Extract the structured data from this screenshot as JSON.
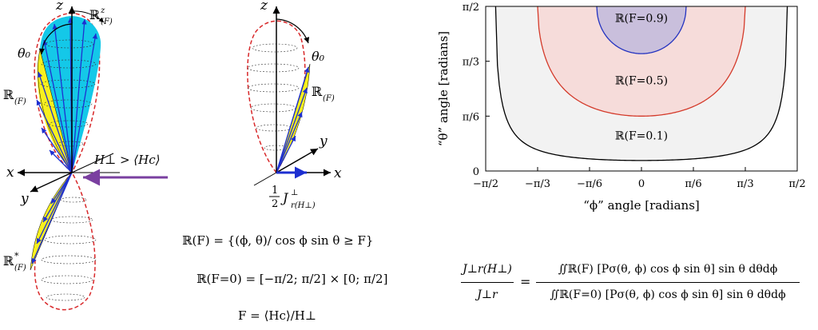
{
  "left": {
    "axis_z": "z",
    "axis_x": "x",
    "axis_y": "y",
    "label_RzF": "ℝ",
    "label_RzF_sup": "z",
    "label_RzF_sub": "(F)",
    "theta0": "θ₀",
    "label_RF": "ℝ",
    "label_RF_sub": "(F)",
    "label_RstarF": "ℝ",
    "label_RstarF_sup": "*",
    "label_RstarF_sub": "(F)",
    "field_label": "H⊥ > ⟨Hc⟩"
  },
  "middle": {
    "axis_z": "z",
    "axis_x": "x",
    "axis_y": "y",
    "theta0": "θ₀",
    "label_RF": "ℝ",
    "label_RF_sub": "(F)",
    "half_num": "1",
    "half_den": "2",
    "J_label": "J",
    "J_sup": "⊥",
    "J_sub": "r(H⊥)"
  },
  "equations": {
    "eq1": "ℝ(F) = {(ϕ, θ)/ cos ϕ sin θ ≥ F}",
    "eq2": "ℝ(F=0) = [−π/2; π/2] × [0; π/2]",
    "eq3": "F = ⟨Hc⟩/H⊥",
    "ratio_num": "J⊥r(H⊥)",
    "ratio_den": "J⊥r",
    "integral_num": "∬ℝ(F) [Pσ(θ, ϕ) cos ϕ sin θ] sin θ dθdϕ",
    "integral_den": "∬ℝ(F=0) [Pσ(θ, ϕ) cos ϕ sin θ] sin θ dθdϕ"
  },
  "chart_data": {
    "type": "area",
    "xlabel": "“ϕ” angle [radians]",
    "ylabel": "“θ” angle [radians]",
    "x_ticks": [
      "−π/2",
      "−π/3",
      "−π/6",
      "0",
      "π/6",
      "π/3",
      "π/2"
    ],
    "y_ticks": [
      "0",
      "π/6",
      "π/3",
      "π/2"
    ],
    "xlim": [
      "-π/2",
      "π/2"
    ],
    "ylim": [
      "0",
      "π/2"
    ],
    "series": [
      {
        "name": "ℝ(F=0.1)",
        "F": 0.1,
        "stroke": "#000000",
        "fill": "#f2f2f2"
      },
      {
        "name": "ℝ(F=0.5)",
        "F": 0.5,
        "stroke": "#d43a2a",
        "fill": "#f6dcda"
      },
      {
        "name": "ℝ(F=0.9)",
        "F": 0.9,
        "stroke": "#2433c0",
        "fill": "#c9bfdc"
      }
    ],
    "region_rule": "cos ϕ sin θ ≥ F",
    "grid": false
  },
  "colors": {
    "lobe_cyan": "#14c8e8",
    "lobe_yellow": "#f7f01e",
    "arrow_blue": "#1d2fd1",
    "dashed_red": "#d8282a",
    "field_arrow": "#7a3fa0"
  }
}
